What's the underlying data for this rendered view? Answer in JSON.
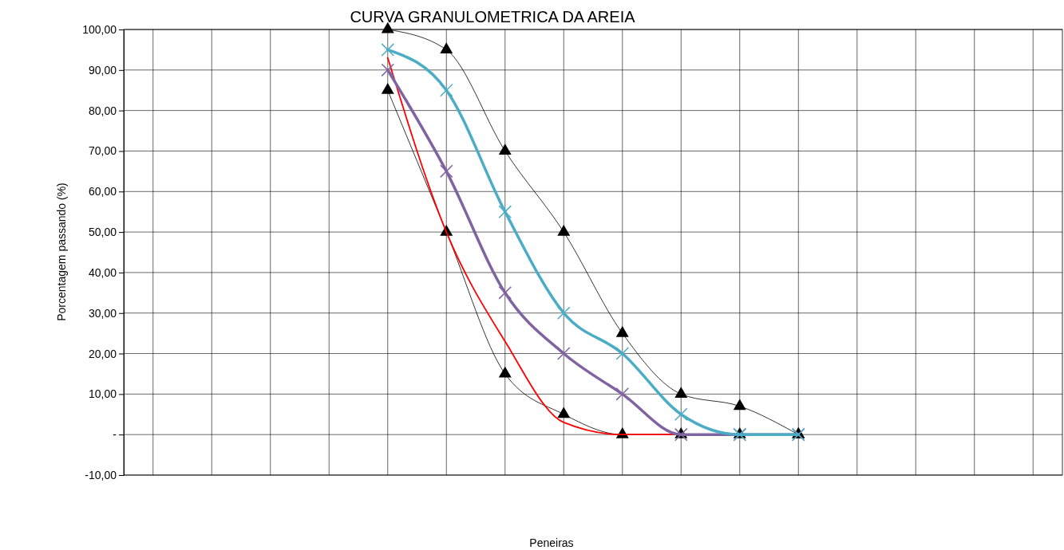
{
  "chart_data": {
    "type": "line",
    "title": "CURVA GRANULOMETRICA DA AREIA",
    "xlabel": "Peneiras",
    "ylabel": "Porcentagem passando (%)",
    "categories": [
      null,
      null,
      null,
      null,
      null,
      null,
      null,
      null,
      null,
      null,
      null,
      null,
      null,
      null,
      null,
      null
    ],
    "series": [
      {
        "color": "#000000",
        "marker": "triangle",
        "values": [
          null,
          null,
          null,
          null,
          100,
          95,
          70,
          50,
          25,
          10,
          7,
          0,
          null,
          null,
          null,
          null
        ]
      },
      {
        "color": "#000000",
        "marker": "triangle",
        "values": [
          null,
          null,
          null,
          null,
          85,
          50,
          15,
          5,
          0,
          0,
          0,
          0,
          null,
          null,
          null,
          null
        ]
      },
      {
        "color": "#ff0000",
        "marker": "none",
        "values": [
          null,
          null,
          null,
          null,
          93,
          50,
          23,
          3,
          0,
          0,
          null,
          null,
          null,
          null,
          null,
          null
        ]
      },
      {
        "color": "#8064a2",
        "marker": "cross",
        "values": [
          null,
          null,
          null,
          null,
          90,
          65,
          35,
          20,
          10,
          0,
          0,
          0,
          null,
          null,
          null,
          null
        ]
      },
      {
        "color": "#4bacc6",
        "marker": "cross",
        "values": [
          null,
          null,
          null,
          null,
          95,
          85,
          55,
          30,
          20,
          5,
          0,
          0,
          null,
          null,
          null,
          null
        ]
      }
    ],
    "ylim": [
      -10,
      100
    ],
    "yticks": [
      {
        "value": -10,
        "label": "-10,00"
      },
      {
        "value": 0,
        "label": "-"
      },
      {
        "value": 10,
        "label": "10,00"
      },
      {
        "value": 20,
        "label": "20,00"
      },
      {
        "value": 30,
        "label": "30,00"
      },
      {
        "value": 40,
        "label": "40,00"
      },
      {
        "value": 50,
        "label": "50,00"
      },
      {
        "value": 60,
        "label": "60,00"
      },
      {
        "value": 70,
        "label": "70,00"
      },
      {
        "value": 80,
        "label": "80,00"
      },
      {
        "value": 90,
        "label": "90,00"
      },
      {
        "value": 100,
        "label": "100,00"
      }
    ],
    "grid": true,
    "tick_labels": "y"
  }
}
